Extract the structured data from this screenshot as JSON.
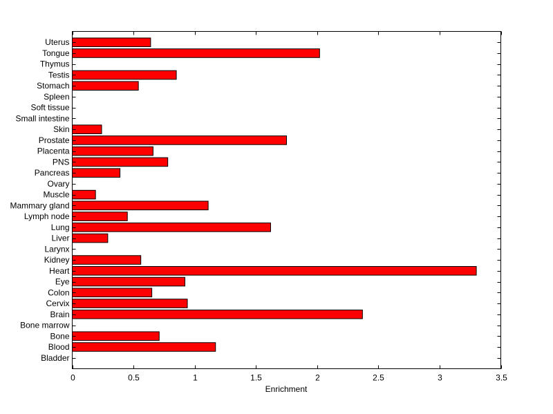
{
  "chart_data": {
    "type": "bar",
    "orientation": "horizontal",
    "title": "",
    "xlabel": "Enrichment",
    "ylabel": "",
    "xlim": [
      0,
      3.5
    ],
    "xticks": [
      "0",
      "0.5",
      "1",
      "1.5",
      "2",
      "2.5",
      "3",
      "3.5"
    ],
    "grid": false,
    "bar_color": "#ff0000",
    "edge_color": "#000000",
    "categories": [
      "Bladder",
      "Blood",
      "Bone",
      "Bone marrow",
      "Brain",
      "Cervix",
      "Colon",
      "Eye",
      "Heart",
      "Kidney",
      "Larynx",
      "Liver",
      "Lung",
      "Lymph node",
      "Mammary gland",
      "Muscle",
      "Ovary",
      "Pancreas",
      "PNS",
      "Placenta",
      "Prostate",
      "Skin",
      "Small intestine",
      "Soft tissue",
      "Spleen",
      "Stomach",
      "Testis",
      "Thymus",
      "Tongue",
      "Uterus"
    ],
    "values": [
      0,
      1.17,
      0.71,
      0,
      2.37,
      0.94,
      0.65,
      0.92,
      3.3,
      0.56,
      0,
      0.29,
      1.62,
      0.45,
      1.11,
      0.19,
      0,
      0.39,
      0.78,
      0.66,
      1.75,
      0.24,
      0,
      0,
      0,
      0.54,
      0.85,
      0,
      2.02,
      0.64
    ]
  }
}
